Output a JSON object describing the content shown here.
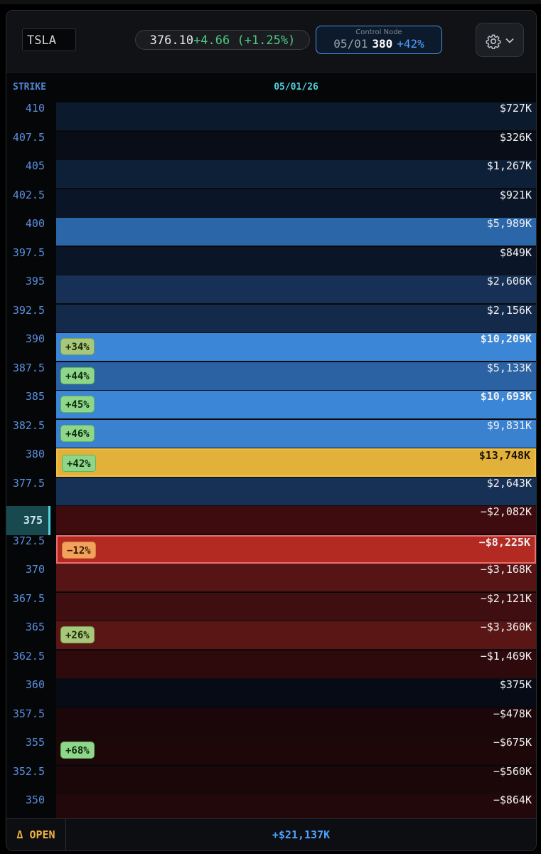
{
  "header": {
    "ticker_value": "TSLA",
    "price": "376.10",
    "change": "+4.66 (+1.25%)",
    "control_node": {
      "label": "Control Node",
      "date": "05/01",
      "strike": "380",
      "pct": "+42%"
    },
    "settings_icon": "gear-icon",
    "dropdown_icon": "chevron-down-icon"
  },
  "columns": {
    "strike_label": "STRIKE",
    "expiry_label": "05/01/26"
  },
  "rows": [
    {
      "strike": "410",
      "value": "$727K",
      "bg": "#0c1a2e",
      "badge": "",
      "badge_style": "",
      "style": ""
    },
    {
      "strike": "407.5",
      "value": "$326K",
      "bg": "#080d18",
      "badge": "",
      "badge_style": "",
      "style": ""
    },
    {
      "strike": "405",
      "value": "$1,267K",
      "bg": "#0e2038",
      "badge": "",
      "badge_style": "",
      "style": ""
    },
    {
      "strike": "402.5",
      "value": "$921K",
      "bg": "#0a1628",
      "badge": "",
      "badge_style": "",
      "style": ""
    },
    {
      "strike": "400",
      "value": "$5,989K",
      "bg": "#2a66a8",
      "badge": "",
      "badge_style": "",
      "style": ""
    },
    {
      "strike": "397.5",
      "value": "$849K",
      "bg": "#0a1628",
      "badge": "",
      "badge_style": "",
      "style": ""
    },
    {
      "strike": "395",
      "value": "$2,606K",
      "bg": "#173056",
      "badge": "",
      "badge_style": "",
      "style": ""
    },
    {
      "strike": "392.5",
      "value": "$2,156K",
      "bg": "#142a4a",
      "badge": "",
      "badge_style": "",
      "style": ""
    },
    {
      "strike": "390",
      "value": "$10,209K",
      "bg": "#3b86d6",
      "badge": "+34%",
      "badge_style": "olive",
      "style": "bold"
    },
    {
      "strike": "387.5",
      "value": "$5,133K",
      "bg": "#2a62a4",
      "badge": "+44%",
      "badge_style": "green",
      "style": ""
    },
    {
      "strike": "385",
      "value": "$10,693K",
      "bg": "#3b86d6",
      "badge": "+45%",
      "badge_style": "green",
      "style": "bold"
    },
    {
      "strike": "382.5",
      "value": "$9,831K",
      "bg": "#3a82d0",
      "badge": "+46%",
      "badge_style": "green",
      "style": ""
    },
    {
      "strike": "380",
      "value": "$13,748K",
      "bg": "#e2b13a",
      "badge": "+42%",
      "badge_style": "green",
      "style": "selected-gold"
    },
    {
      "strike": "377.5",
      "value": "$2,643K",
      "bg": "#173056",
      "badge": "",
      "badge_style": "",
      "style": ""
    },
    {
      "strike": "375",
      "value": "−$2,082K",
      "bg": "#3e0c0e",
      "badge": "",
      "badge_style": "",
      "style": "current"
    },
    {
      "strike": "372.5",
      "value": "−$8,225K",
      "bg": "#b22a22",
      "badge": "−12%",
      "badge_style": "orange",
      "style": "selected-red"
    },
    {
      "strike": "370",
      "value": "−$3,168K",
      "bg": "#561414",
      "badge": "",
      "badge_style": "",
      "style": ""
    },
    {
      "strike": "367.5",
      "value": "−$2,121K",
      "bg": "#3f0e10",
      "badge": "",
      "badge_style": "",
      "style": ""
    },
    {
      "strike": "365",
      "value": "−$3,360K",
      "bg": "#5a1515",
      "badge": "+26%",
      "badge_style": "olive",
      "style": ""
    },
    {
      "strike": "362.5",
      "value": "−$1,469K",
      "bg": "#2e0a0d",
      "badge": "",
      "badge_style": "",
      "style": ""
    },
    {
      "strike": "360",
      "value": "$375K",
      "bg": "#070b15",
      "badge": "",
      "badge_style": "",
      "style": ""
    },
    {
      "strike": "357.5",
      "value": "−$478K",
      "bg": "#1b0709",
      "badge": "",
      "badge_style": "",
      "style": ""
    },
    {
      "strike": "355",
      "value": "−$675K",
      "bg": "#1d0709",
      "badge": "+68%",
      "badge_style": "green",
      "style": ""
    },
    {
      "strike": "352.5",
      "value": "−$560K",
      "bg": "#1b0709",
      "badge": "",
      "badge_style": "",
      "style": ""
    },
    {
      "strike": "350",
      "value": "−$864K",
      "bg": "#22080a",
      "badge": "",
      "badge_style": "",
      "style": ""
    }
  ],
  "footer": {
    "label": "Δ OPEN",
    "total": "+$21,137K"
  },
  "colors": {
    "accent_blue": "#4ea1ff",
    "accent_gold": "#e2b13a",
    "accent_red": "#b22a22",
    "current_cyan": "#4fd6e0"
  }
}
